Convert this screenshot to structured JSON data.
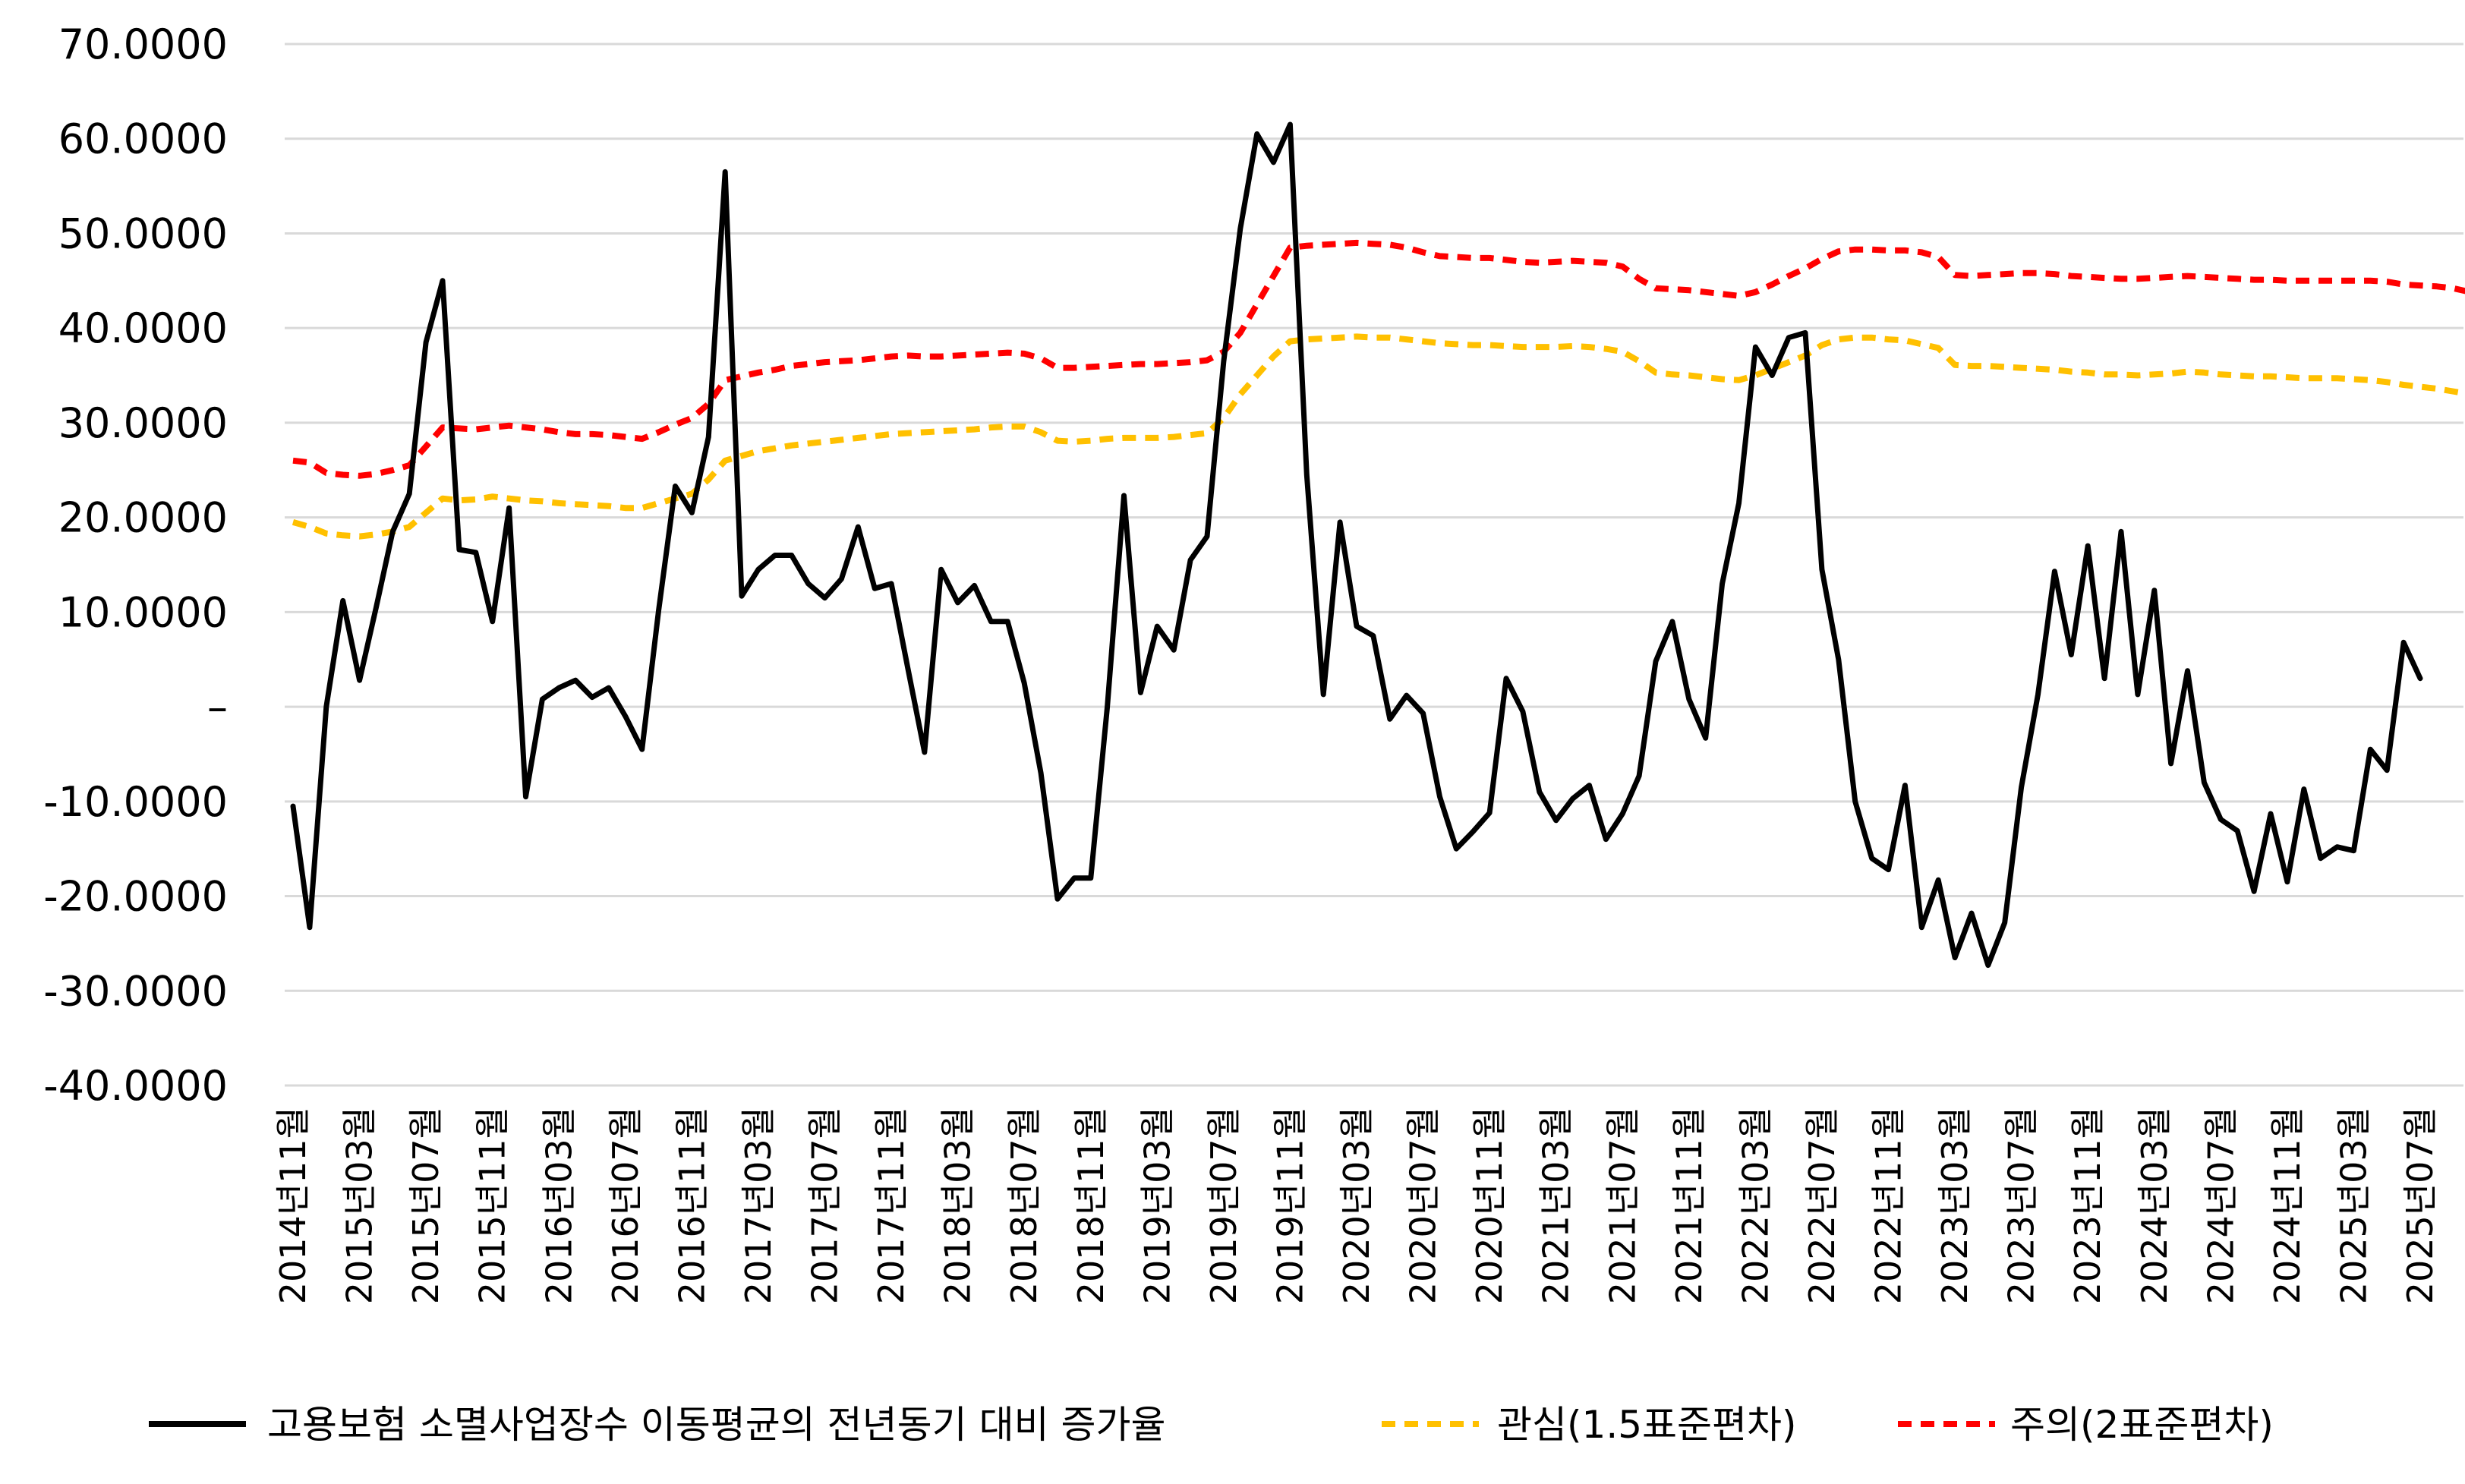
{
  "chart_data": {
    "type": "line",
    "title": "",
    "xlabel": "",
    "ylabel": "",
    "ylim": [
      -40,
      70
    ],
    "y_ticks": [
      70,
      60,
      50,
      40,
      30,
      20,
      10,
      0,
      -10,
      -20,
      -30,
      -40
    ],
    "y_tick_labels": [
      "70.0000",
      "60.0000",
      "50.0000",
      "40.0000",
      "30.0000",
      "20.0000",
      "10.0000",
      "–",
      "-10.0000",
      "-20.0000",
      "-30.0000",
      "-40.0000"
    ],
    "grid": "horizontal",
    "legend_position": "bottom",
    "x_tick_labels": [
      "2014년11월",
      "2015년03월",
      "2015년07월",
      "2015년11월",
      "2016년03월",
      "2016년07월",
      "2016년11월",
      "2017년03월",
      "2017년07월",
      "2017년11월",
      "2018년03월",
      "2018년07월",
      "2018년11월",
      "2019년03월",
      "2019년07월",
      "2019년11월",
      "2020년03월",
      "2020년07월",
      "2020년11월",
      "2021년03월",
      "2021년07월",
      "2021년11월",
      "2022년03월",
      "2022년07월",
      "2022년11월",
      "2023년03월",
      "2023년07월",
      "2023년11월",
      "2024년03월",
      "2024년07월",
      "2024년11월",
      "2025년03월",
      "2025년07월"
    ],
    "series": [
      {
        "name": "고용보험 소멸사업장수 이동평균의 전년동기 대비 증가율",
        "color": "#000000",
        "style": "solid",
        "values": [
          -10.5,
          -23.3,
          0,
          11.2,
          2.8,
          10.5,
          18.5,
          22.5,
          38.5,
          45,
          16.6,
          16.3,
          9,
          21,
          -9.5,
          0.8,
          2,
          2.8,
          1,
          2,
          -1,
          -4.5,
          10.2,
          23.3,
          20.5,
          28.5,
          56.5,
          11.7,
          14.5,
          16,
          16,
          13,
          11.5,
          13.5,
          19,
          12.5,
          13,
          4,
          -4.8,
          14.5,
          11,
          12.8,
          9,
          9,
          2.5,
          -7,
          -20.3,
          -18.1,
          -18.1,
          0,
          22.3,
          1.5,
          8.5,
          6,
          15.5,
          18,
          36.5,
          50.5,
          60.5,
          57.5,
          61.5,
          24.5,
          1.3,
          19.5,
          8.5,
          7.5,
          -1.3,
          1.2,
          -0.7,
          -9.5,
          -15,
          -13.2,
          -11.2,
          3,
          -0.5,
          -9,
          -12,
          -9.7,
          -8.3,
          -14,
          -11.3,
          -7.3,
          4.8,
          9,
          0.8,
          -3.3,
          13,
          21.5,
          38,
          35,
          39,
          39.5,
          14.5,
          5,
          -10,
          -16,
          -17.2,
          -8.3,
          -23.3,
          -18.3,
          -26.5,
          -21.8,
          -27.3,
          -22.8,
          -8.5,
          1.3,
          14.3,
          5.5,
          17,
          3,
          18.5,
          1.3,
          12.3,
          -6,
          3.8,
          -8,
          -11.9,
          -13.1,
          -19.5,
          -11.3,
          -18.5,
          -8.7,
          -16,
          -14.8,
          -15.2,
          -4.5,
          -6.7,
          6.8,
          3
        ]
      },
      {
        "name": "관심(1.5표준편차)",
        "color": "#FFC000",
        "style": "dashed",
        "values": [
          19.5,
          19,
          18.3,
          18.1,
          18,
          18.2,
          18.5,
          19,
          20.5,
          22,
          21.8,
          21.9,
          22.2,
          22,
          21.8,
          21.7,
          21.5,
          21.4,
          21.3,
          21.2,
          21,
          21,
          21.5,
          22,
          22.5,
          24,
          26,
          26.5,
          27,
          27.3,
          27.6,
          27.8,
          28,
          28.2,
          28.4,
          28.6,
          28.8,
          28.9,
          29,
          29.1,
          29.2,
          29.3,
          29.5,
          29.6,
          29.6,
          29,
          28.1,
          28,
          28.1,
          28.3,
          28.4,
          28.4,
          28.4,
          28.5,
          28.7,
          28.9,
          30.5,
          33,
          35,
          37,
          38.6,
          38.8,
          38.9,
          39,
          39.1,
          39,
          39,
          38.8,
          38.6,
          38.4,
          38.3,
          38.2,
          38.2,
          38.1,
          38,
          38,
          38,
          38.1,
          38,
          37.8,
          37.5,
          36.5,
          35.3,
          35.1,
          35,
          34.8,
          34.6,
          34.5,
          35,
          35.7,
          36.4,
          37.1,
          38.2,
          38.8,
          39,
          39,
          38.8,
          38.7,
          38.3,
          37.9,
          36.1,
          36,
          36,
          35.9,
          35.8,
          35.7,
          35.6,
          35.4,
          35.3,
          35.1,
          35.1,
          35,
          35.1,
          35.2,
          35.4,
          35.3,
          35.1,
          35,
          34.9,
          34.9,
          34.8,
          34.7,
          34.7,
          34.7,
          34.6,
          34.5,
          34.3,
          34,
          33.8,
          33.6,
          33.3,
          33,
          32.2
        ]
      },
      {
        "name": "주의(2표준편차)",
        "color": "#FF0000",
        "style": "dashed",
        "values": [
          26,
          25.8,
          24.7,
          24.5,
          24.4,
          24.6,
          25,
          25.5,
          27.5,
          29.5,
          29.4,
          29.3,
          29.5,
          29.7,
          29.5,
          29.3,
          29,
          28.8,
          28.8,
          28.7,
          28.5,
          28.3,
          29,
          29.8,
          30.5,
          32,
          34.5,
          34.9,
          35.3,
          35.6,
          36,
          36.2,
          36.4,
          36.5,
          36.6,
          36.8,
          37,
          37.1,
          37,
          37,
          37.1,
          37.2,
          37.3,
          37.4,
          37.3,
          36.8,
          35.8,
          35.8,
          35.9,
          36,
          36.1,
          36.2,
          36.2,
          36.3,
          36.4,
          36.6,
          37.5,
          39.5,
          42.5,
          45.5,
          48.5,
          48.7,
          48.8,
          48.9,
          49,
          48.9,
          48.8,
          48.5,
          48,
          47.6,
          47.5,
          47.4,
          47.4,
          47.2,
          47,
          46.9,
          47,
          47.1,
          47,
          46.9,
          46.5,
          45.2,
          44.2,
          44.1,
          44,
          43.8,
          43.6,
          43.4,
          43.8,
          44.6,
          45.5,
          46.3,
          47.3,
          48.1,
          48.3,
          48.3,
          48.2,
          48.2,
          48,
          47.5,
          45.6,
          45.5,
          45.6,
          45.7,
          45.8,
          45.8,
          45.7,
          45.5,
          45.4,
          45.3,
          45.2,
          45.2,
          45.3,
          45.4,
          45.5,
          45.4,
          45.3,
          45.2,
          45.1,
          45.1,
          45,
          45,
          45,
          45,
          45,
          45,
          44.9,
          44.6,
          44.5,
          44.4,
          44.2,
          43.8,
          43.5,
          42.3
        ]
      }
    ]
  }
}
